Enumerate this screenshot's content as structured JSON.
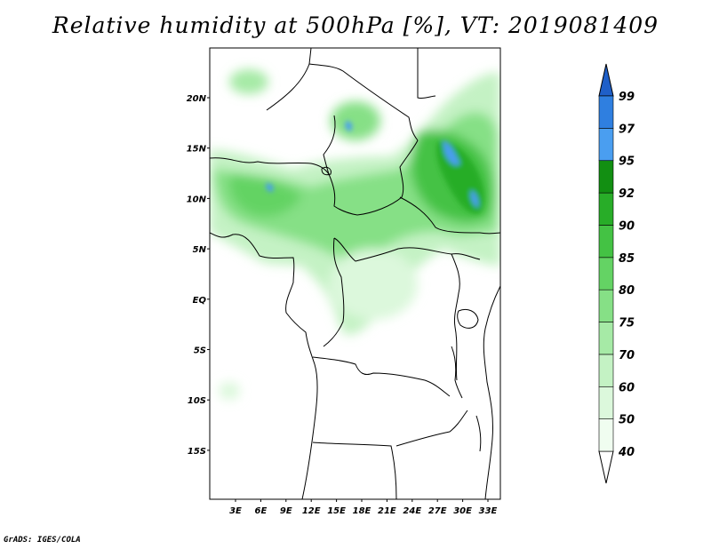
{
  "title": "Relative humidity at 500hPa [%], VT: 2019081409",
  "credit": "GrADS: IGES/COLA",
  "lat_labels": [
    "20N",
    "15N",
    "10N",
    "5N",
    "EQ",
    "5S",
    "10S",
    "15S"
  ],
  "lon_labels": [
    "3E",
    "6E",
    "9E",
    "12E",
    "15E",
    "18E",
    "21E",
    "24E",
    "27E",
    "30E",
    "33E"
  ],
  "colorbar": {
    "levels": [
      "40",
      "50",
      "60",
      "70",
      "75",
      "80",
      "85",
      "90",
      "92",
      "95",
      "97",
      "99"
    ],
    "colors": [
      "#f0fdf0",
      "#dcf8dc",
      "#c4f2c4",
      "#a6eaa6",
      "#86e086",
      "#64d364",
      "#44c244",
      "#28ad28",
      "#128f12",
      "#4a9ef0",
      "#2f7fe0",
      "#1f5fc8"
    ]
  },
  "colors": {
    "land_border": "#000000",
    "frame": "#000000"
  }
}
